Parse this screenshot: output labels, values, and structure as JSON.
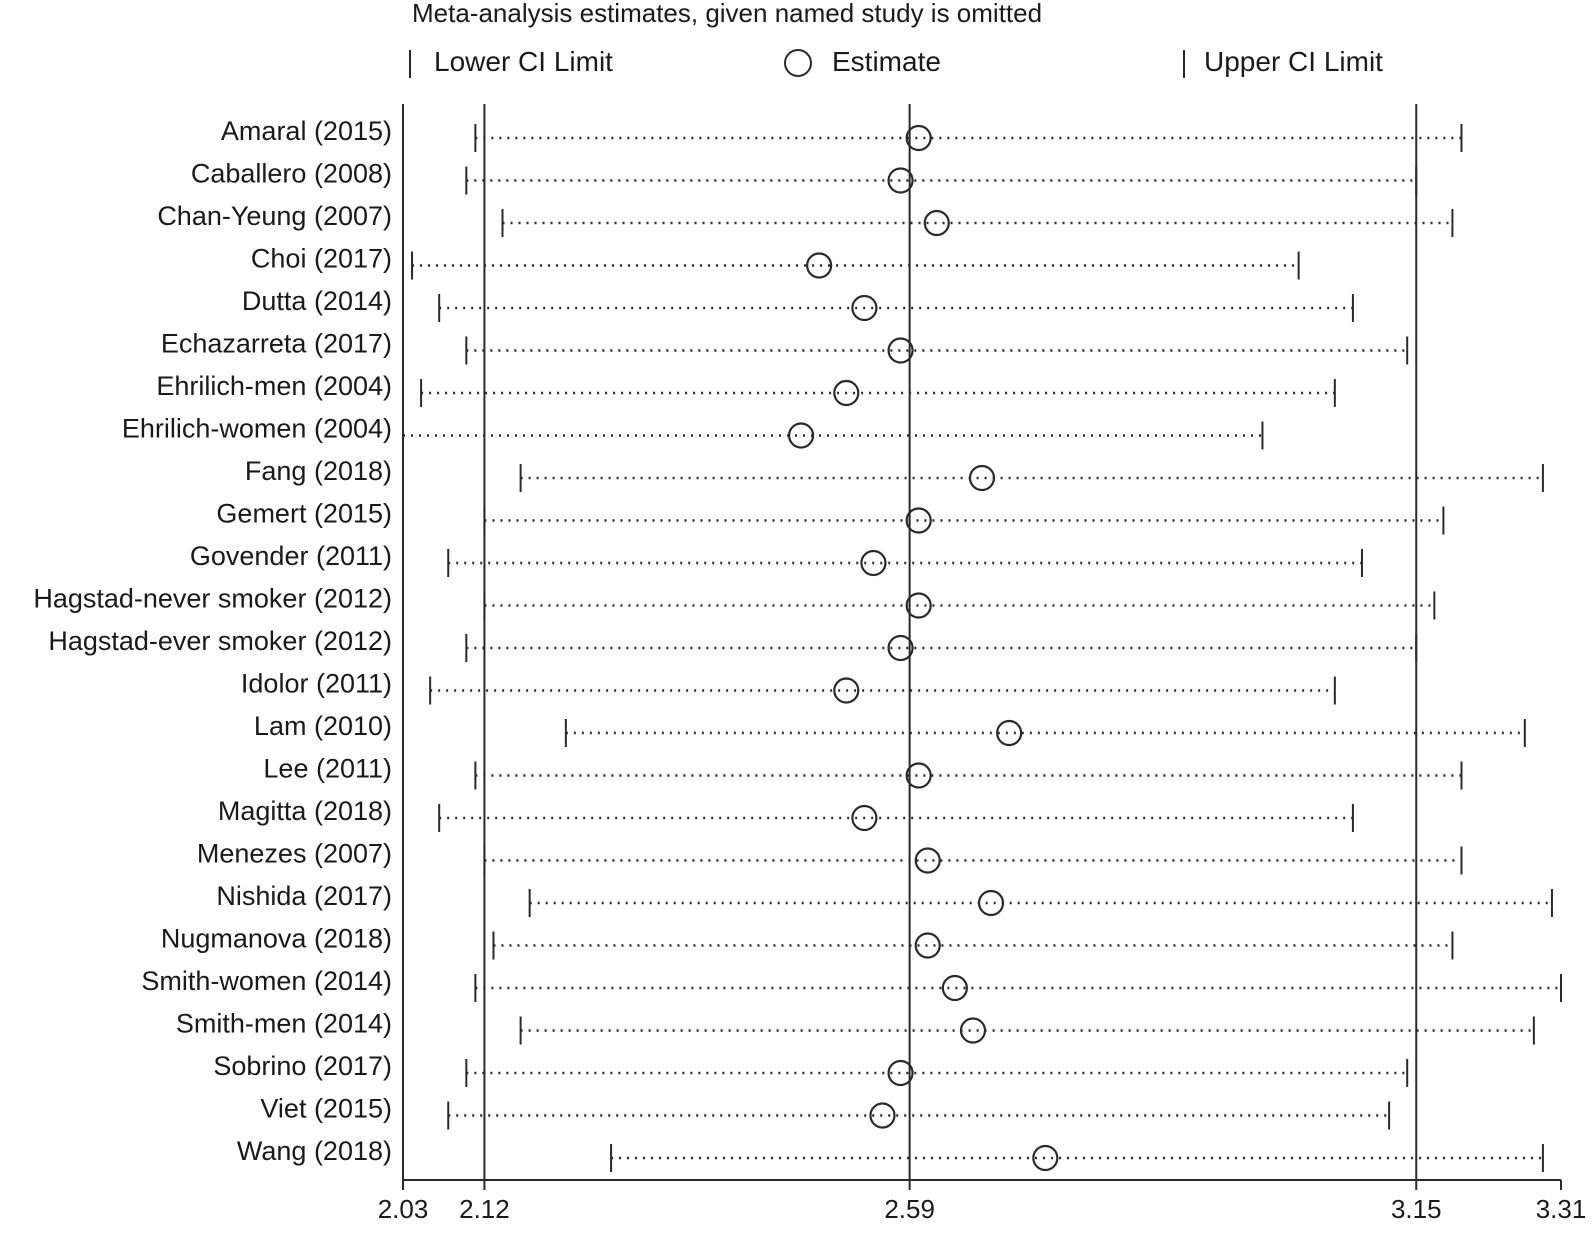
{
  "chart_data": {
    "type": "scatter",
    "title": "Meta-analysis estimates, given named study is omitted",
    "legend": {
      "lower_label": "Lower CI Limit",
      "estimate_label": "Estimate",
      "upper_label": "Upper CI Limit",
      "placement": "top"
    },
    "xlim": [
      2.03,
      3.31
    ],
    "x_ticks": [
      "2.03",
      "2.12",
      "2.59",
      "3.15",
      "3.31"
    ],
    "reference_lines": [
      2.12,
      2.59,
      3.15
    ],
    "studies": [
      {
        "label": "Amaral (2015)",
        "lower": 2.11,
        "estimate": 2.6,
        "upper": 3.2
      },
      {
        "label": "Caballero (2008)",
        "lower": 2.1,
        "estimate": 2.58,
        "upper": 3.15
      },
      {
        "label": "Chan-Yeung (2007)",
        "lower": 2.14,
        "estimate": 2.62,
        "upper": 3.19
      },
      {
        "label": "Choi (2017)",
        "lower": 2.04,
        "estimate": 2.49,
        "upper": 3.02
      },
      {
        "label": "Dutta (2014)",
        "lower": 2.07,
        "estimate": 2.54,
        "upper": 3.08
      },
      {
        "label": "Echazarreta (2017)",
        "lower": 2.1,
        "estimate": 2.58,
        "upper": 3.14
      },
      {
        "label": "Ehrilich-men (2004)",
        "lower": 2.05,
        "estimate": 2.52,
        "upper": 3.06
      },
      {
        "label": "Ehrilich-women (2004)",
        "lower": 2.03,
        "estimate": 2.47,
        "upper": 2.98
      },
      {
        "label": "Fang (2018)",
        "lower": 2.16,
        "estimate": 2.67,
        "upper": 3.29
      },
      {
        "label": "Gemert (2015)",
        "lower": 2.12,
        "estimate": 2.6,
        "upper": 3.18
      },
      {
        "label": "Govender (2011)",
        "lower": 2.08,
        "estimate": 2.55,
        "upper": 3.09
      },
      {
        "label": "Hagstad-never smoker (2012)",
        "lower": 2.12,
        "estimate": 2.6,
        "upper": 3.17
      },
      {
        "label": "Hagstad-ever smoker (2012)",
        "lower": 2.1,
        "estimate": 2.58,
        "upper": 3.15
      },
      {
        "label": "Idolor (2011)",
        "lower": 2.06,
        "estimate": 2.52,
        "upper": 3.06
      },
      {
        "label": "Lam (2010)",
        "lower": 2.21,
        "estimate": 2.7,
        "upper": 3.27
      },
      {
        "label": "Lee (2011)",
        "lower": 2.11,
        "estimate": 2.6,
        "upper": 3.2
      },
      {
        "label": "Magitta (2018)",
        "lower": 2.07,
        "estimate": 2.54,
        "upper": 3.08
      },
      {
        "label": "Menezes (2007)",
        "lower": 2.12,
        "estimate": 2.61,
        "upper": 3.2
      },
      {
        "label": "Nishida (2017)",
        "lower": 2.17,
        "estimate": 2.68,
        "upper": 3.3
      },
      {
        "label": "Nugmanova (2018)",
        "lower": 2.13,
        "estimate": 2.61,
        "upper": 3.19
      },
      {
        "label": "Smith-women (2014)",
        "lower": 2.11,
        "estimate": 2.64,
        "upper": 3.31
      },
      {
        "label": "Smith-men (2014)",
        "lower": 2.16,
        "estimate": 2.66,
        "upper": 3.28
      },
      {
        "label": "Sobrino (2017)",
        "lower": 2.1,
        "estimate": 2.58,
        "upper": 3.14
      },
      {
        "label": "Viet (2015)",
        "lower": 2.08,
        "estimate": 2.56,
        "upper": 3.12
      },
      {
        "label": "Wang (2018)",
        "lower": 2.26,
        "estimate": 2.74,
        "upper": 3.29
      }
    ]
  }
}
